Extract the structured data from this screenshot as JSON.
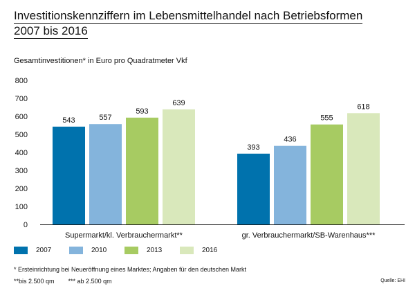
{
  "title_line1": "Investitionskennziffern im Lebensmittelhandel nach Betriebsformen",
  "title_line2": "2007 bis 2016",
  "subtitle": "Gesamtinvestitionen* in Euro pro Quadratmeter Vkf",
  "footnote1": "*  Ersteinrichtung bei Neueröffnung eines Marktes; Angaben für den deutschen Markt",
  "footnote2": "**bis 2.500 qm        *** ab 2.500 qm",
  "source": "Quelle: EHI",
  "colors": {
    "2007": "#0072ad",
    "2010": "#84b4dc",
    "2013": "#a7cb62",
    "2016": "#d9e8bb"
  },
  "chart_data": {
    "type": "bar",
    "title": "Investitionskennziffern im Lebensmittelhandel nach Betriebsformen 2007 bis 2016",
    "ylabel": "Gesamtinvestitionen* in Euro pro Quadratmeter Vkf",
    "xlabel": "",
    "ylim": [
      0,
      800
    ],
    "yticks": [
      0,
      100,
      200,
      300,
      400,
      500,
      600,
      700,
      800
    ],
    "grid": false,
    "legend": "bottom",
    "categories": [
      "Supermarkt/kl. Verbrauchermarkt**",
      "gr. Verbrauchermarkt/SB-Warenhaus***"
    ],
    "series": [
      {
        "name": "2007",
        "values": [
          543,
          393
        ]
      },
      {
        "name": "2010",
        "values": [
          557,
          436
        ]
      },
      {
        "name": "2013",
        "values": [
          593,
          555
        ]
      },
      {
        "name": "2016",
        "values": [
          639,
          618
        ]
      }
    ]
  }
}
